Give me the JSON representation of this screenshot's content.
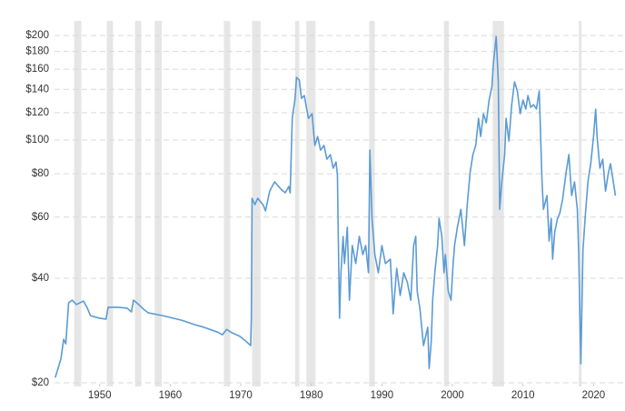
{
  "chart_data": {
    "type": "line",
    "log_y": true,
    "grid": true,
    "color": "#5b9bd5",
    "band_color": "#e6e6e6",
    "xlim": [
      1943.6,
      2024.2
    ],
    "xticks": [
      1950,
      1960,
      1970,
      1980,
      1990,
      2000,
      2010,
      2020
    ],
    "ylim": [
      20,
      210
    ],
    "yticks": [
      {
        "value": 20,
        "label": "$20"
      },
      {
        "value": 40,
        "label": "$40"
      },
      {
        "value": 60,
        "label": "$60"
      },
      {
        "value": 80,
        "label": "$80"
      },
      {
        "value": 100,
        "label": "$100"
      },
      {
        "value": 120,
        "label": "$120"
      },
      {
        "value": 140,
        "label": "$140"
      },
      {
        "value": 160,
        "label": "$160"
      },
      {
        "value": 180,
        "label": "$180"
      },
      {
        "value": 200,
        "label": "$200"
      }
    ],
    "recessions": [
      [
        1946.4,
        1947.4
      ],
      [
        1951.0,
        1951.9
      ],
      [
        1955.0,
        1955.9
      ],
      [
        1957.8,
        1958.8
      ],
      [
        1967.6,
        1968.5
      ],
      [
        1971.6,
        1972.8
      ],
      [
        1977.7,
        1978.3
      ],
      [
        1979.3,
        1980.6
      ],
      [
        1988.2,
        1989.0
      ],
      [
        1998.8,
        1999.5
      ],
      [
        2005.7,
        2007.3
      ],
      [
        2017.9,
        2018.3
      ]
    ],
    "x": [
      1943.7,
      1944.1,
      1944.5,
      1944.9,
      1945.2,
      1945.6,
      1946.1,
      1946.7,
      1947.7,
      1948.2,
      1948.7,
      1950.0,
      1950.9,
      1951.2,
      1952.6,
      1953.9,
      1954.5,
      1954.8,
      1955.4,
      1956.2,
      1956.9,
      1959.0,
      1961.6,
      1963.5,
      1964.8,
      1966.7,
      1967.4,
      1968.0,
      1968.7,
      1969.9,
      1970.6,
      1971.4,
      1971.5,
      1971.6,
      1972.0,
      1972.4,
      1973.2,
      1973.5,
      1974.1,
      1974.8,
      1975.7,
      1976.3,
      1976.8,
      1977.0,
      1977.3,
      1977.7,
      1977.9,
      1978.3,
      1978.6,
      1979.0,
      1979.3,
      1979.6,
      1980.1,
      1980.5,
      1980.9,
      1981.3,
      1981.8,
      1982.2,
      1982.7,
      1983.1,
      1983.5,
      1983.7,
      1983.8,
      1984.0,
      1984.2,
      1984.5,
      1984.7,
      1985.1,
      1985.4,
      1985.8,
      1986.3,
      1986.8,
      1987.3,
      1987.7,
      1988.1,
      1988.3,
      1988.6,
      1989.0,
      1989.5,
      1990.0,
      1990.5,
      1991.2,
      1991.6,
      1992.1,
      1992.6,
      1993.1,
      1993.6,
      1994.1,
      1994.5,
      1994.8,
      1995.0,
      1995.4,
      1995.9,
      1996.5,
      1996.7,
      1997.0,
      1997.2,
      1997.5,
      1997.9,
      1998.1,
      1998.5,
      1998.8,
      1999.0,
      1999.4,
      1999.8,
      2000.1,
      2000.3,
      2000.7,
      2001.2,
      2001.7,
      2002.1,
      2002.5,
      2002.9,
      2003.3,
      2003.7,
      2004.0,
      2004.4,
      2004.8,
      2005.2,
      2005.6,
      2005.8,
      2006.2,
      2006.5,
      2006.7,
      2007.0,
      2007.4,
      2007.6,
      2008.0,
      2008.4,
      2008.8,
      2009.2,
      2009.6,
      2010.0,
      2010.4,
      2010.7,
      2011.1,
      2011.5,
      2011.9,
      2012.3,
      2012.7,
      2012.9,
      2013.4,
      2013.7,
      2014.0,
      2014.2,
      2014.5,
      2014.9,
      2015.2,
      2015.6,
      2016.1,
      2016.5,
      2016.9,
      2017.3,
      2017.7,
      2017.9,
      2018.2,
      2018.5,
      2018.8,
      2019.2,
      2019.6,
      2020.0,
      2020.3,
      2020.5,
      2020.9,
      2021.3,
      2021.7,
      2022.1,
      2022.4,
      2022.8,
      2023.1
    ],
    "values": [
      20.7,
      22.0,
      23.4,
      26.7,
      25.9,
      34.0,
      34.6,
      33.6,
      34.4,
      33.0,
      31.2,
      30.7,
      30.5,
      33.0,
      33.0,
      32.8,
      32.0,
      34.6,
      33.8,
      32.6,
      31.8,
      31.2,
      30.3,
      29.4,
      28.9,
      28.0,
      27.5,
      28.5,
      27.9,
      27.2,
      26.5,
      25.6,
      30.7,
      68.0,
      65.2,
      68.0,
      64.9,
      62.5,
      71.3,
      75.8,
      72.2,
      70.5,
      73.5,
      70.5,
      115.5,
      131.9,
      151.6,
      148.8,
      131.9,
      134.4,
      124.3,
      115.5,
      119.1,
      96.5,
      102.4,
      93.6,
      96.5,
      88.1,
      90.8,
      83.0,
      86.5,
      79.5,
      56.1,
      30.7,
      41.5,
      52.8,
      44.1,
      56.1,
      34.6,
      49.7,
      44.1,
      52.8,
      46.8,
      49.7,
      41.5,
      93.6,
      59.5,
      46.8,
      41.5,
      49.7,
      44.1,
      45.4,
      31.6,
      42.7,
      35.7,
      41.5,
      39.0,
      34.6,
      49.7,
      52.8,
      36.8,
      32.6,
      25.6,
      28.9,
      22.0,
      26.4,
      34.6,
      41.5,
      49.7,
      59.5,
      52.8,
      41.5,
      46.8,
      36.8,
      34.6,
      44.1,
      49.7,
      56.1,
      63.2,
      49.7,
      65.2,
      80.5,
      90.8,
      96.5,
      115.5,
      102.4,
      119.1,
      112.1,
      130.4,
      142.7,
      165.9,
      198.8,
      147.1,
      63.2,
      75.8,
      90.8,
      115.5,
      99.4,
      126.5,
      147.1,
      138.5,
      119.1,
      130.4,
      122.8,
      134.4,
      124.3,
      126.5,
      122.8,
      138.5,
      75.8,
      63.2,
      69.2,
      51.2,
      59.5,
      45.4,
      54.4,
      59.5,
      61.4,
      67.2,
      80.5,
      90.8,
      69.2,
      75.8,
      63.2,
      46.8,
      22.7,
      48.2,
      59.5,
      75.8,
      85.5,
      102.4,
      122.8,
      102.4,
      83.0,
      88.1,
      71.3,
      80.5,
      85.5,
      75.8,
      69.2
    ]
  }
}
